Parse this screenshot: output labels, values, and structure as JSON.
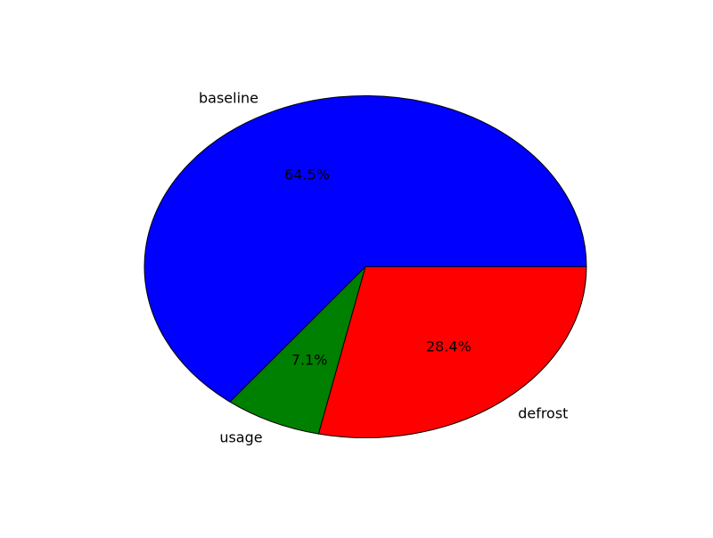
{
  "chart_data": {
    "type": "pie",
    "title": "",
    "start_angle_deg": 0,
    "direction": "counterclockwise",
    "slices": [
      {
        "label": "baseline",
        "value": 64.5,
        "pct_label": "64.5%",
        "color": "#0000ff"
      },
      {
        "label": "usage",
        "value": 7.1,
        "pct_label": "7.1%",
        "color": "#008000"
      },
      {
        "label": "defrost",
        "value": 28.4,
        "pct_label": "28.4%",
        "color": "#ff0000"
      }
    ],
    "edge_color": "#000000",
    "legend": "none"
  }
}
